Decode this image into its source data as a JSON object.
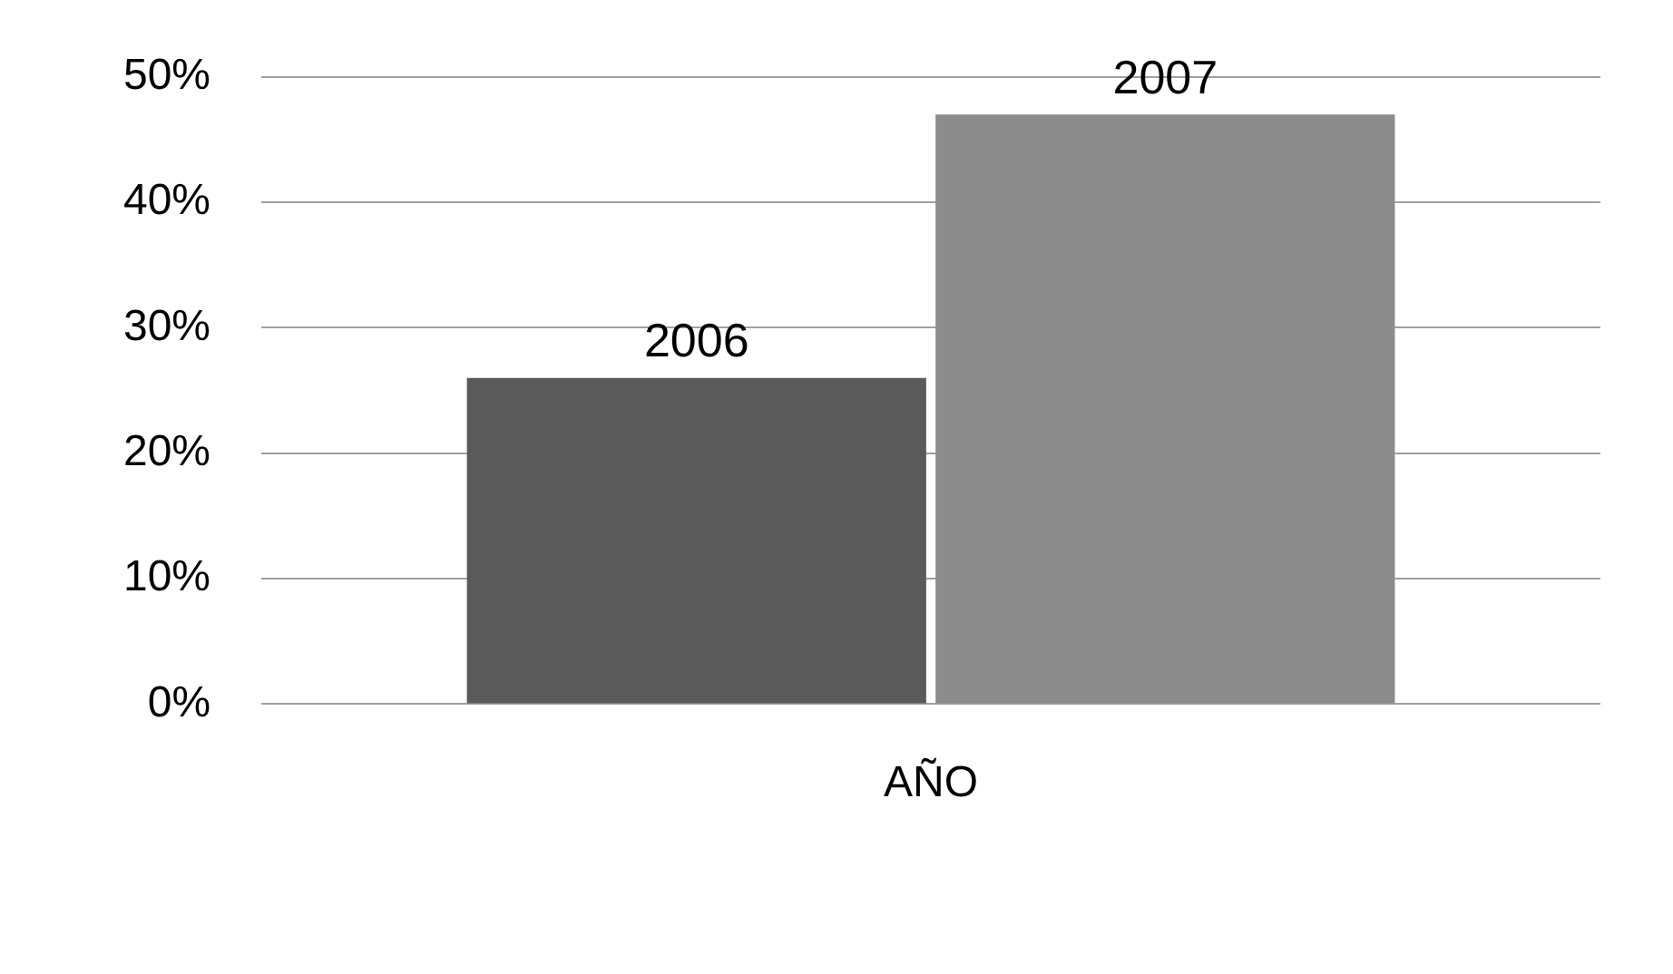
{
  "chart_data": {
    "type": "bar",
    "categories": [
      "AÑO"
    ],
    "series": [
      {
        "name": "2006",
        "color": "#5a5a5a",
        "values": [
          26
        ]
      },
      {
        "name": "2007",
        "color": "#8c8c8c",
        "values": [
          47
        ]
      }
    ],
    "ylim": [
      0,
      50
    ],
    "yticks": [
      {
        "value": 0,
        "label": "0%"
      },
      {
        "value": 10,
        "label": "10%"
      },
      {
        "value": 20,
        "label": "20%"
      },
      {
        "value": 30,
        "label": "30%"
      },
      {
        "value": 40,
        "label": "40%"
      },
      {
        "value": 50,
        "label": "50%"
      }
    ],
    "grid": "y",
    "legend": false
  }
}
